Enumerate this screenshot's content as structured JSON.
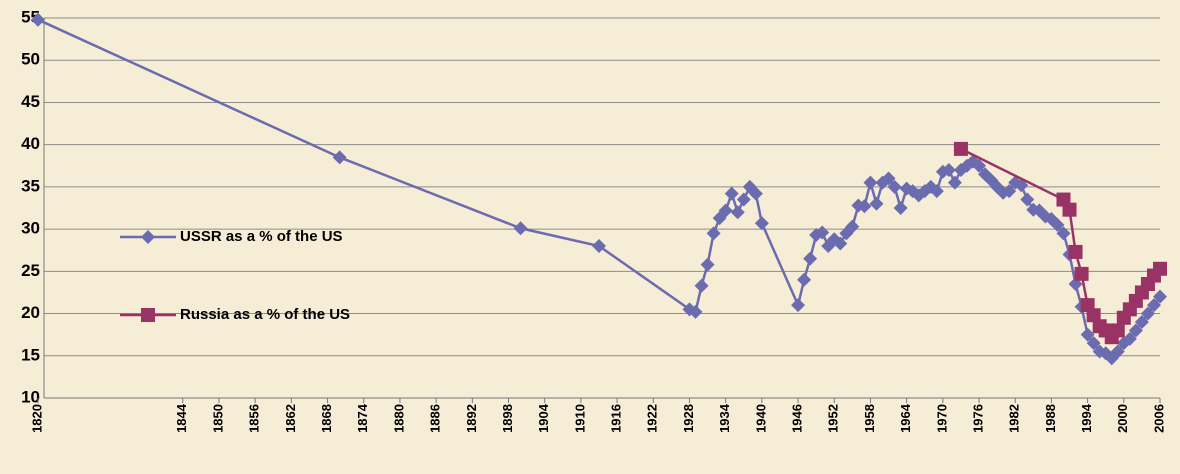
{
  "chart_data": {
    "type": "line",
    "ylim": [
      10,
      55
    ],
    "yticks": [
      10,
      15,
      20,
      25,
      30,
      35,
      40,
      45,
      50,
      55
    ],
    "xlim": [
      1820,
      2006
    ],
    "xticks": [
      1820,
      1844,
      1850,
      1856,
      1862,
      1868,
      1874,
      1880,
      1886,
      1892,
      1898,
      1904,
      1910,
      1916,
      1922,
      1928,
      1934,
      1940,
      1946,
      1952,
      1958,
      1964,
      1970,
      1976,
      1982,
      1988,
      1994,
      2000,
      2006
    ],
    "grid": true,
    "legend": "center-left",
    "series": [
      {
        "name": "USSR as a % of the US",
        "color": "#6b6bb0",
        "marker": "diamond",
        "x": [
          1820,
          1870,
          1900,
          1913,
          1928,
          1929,
          1930,
          1931,
          1932,
          1933,
          1934,
          1935,
          1936,
          1937,
          1938,
          1939,
          1940,
          1946,
          1947,
          1948,
          1949,
          1950,
          1951,
          1952,
          1953,
          1954,
          1955,
          1956,
          1957,
          1958,
          1959,
          1960,
          1961,
          1962,
          1963,
          1964,
          1965,
          1966,
          1967,
          1968,
          1969,
          1970,
          1971,
          1972,
          1973,
          1974,
          1975,
          1976,
          1977,
          1978,
          1979,
          1980,
          1981,
          1982,
          1983,
          1984,
          1985,
          1986,
          1987,
          1988,
          1989,
          1990,
          1991,
          1992,
          1993,
          1994,
          1995,
          1996,
          1997,
          1998,
          1999,
          2000,
          2001,
          2002,
          2003,
          2004,
          2005,
          2006
        ],
        "values": [
          54.8,
          38.5,
          30.1,
          28.0,
          20.5,
          20.2,
          23.3,
          25.8,
          29.5,
          31.3,
          32.2,
          34.2,
          32.0,
          33.5,
          35.0,
          34.2,
          30.7,
          21.0,
          24.0,
          26.5,
          29.3,
          29.6,
          28.0,
          28.8,
          28.3,
          29.5,
          30.3,
          32.8,
          32.7,
          35.5,
          33.0,
          35.5,
          36.0,
          35.0,
          32.5,
          34.8,
          34.5,
          34.0,
          34.5,
          35.0,
          34.5,
          36.8,
          37.0,
          35.5,
          37.0,
          37.5,
          38.0,
          37.5,
          36.5,
          35.8,
          35.0,
          34.3,
          34.5,
          35.5,
          35.2,
          33.5,
          32.3,
          32.2,
          31.5,
          31.2,
          30.5,
          29.5,
          27.0,
          23.5,
          20.8,
          17.5,
          16.5,
          15.5,
          15.3,
          14.7,
          15.5,
          16.5,
          17.0,
          18.0,
          19.0,
          20.0,
          21.0,
          22.0
        ]
      },
      {
        "name": "Russia as a % of the US",
        "color": "#993366",
        "marker": "square",
        "x": [
          1973,
          1990,
          1991,
          1992,
          1993,
          1994,
          1995,
          1996,
          1997,
          1998,
          1999,
          2000,
          2001,
          2002,
          2003,
          2004,
          2005,
          2006
        ],
        "values": [
          39.5,
          33.5,
          32.3,
          27.3,
          24.7,
          21.0,
          19.8,
          18.5,
          18.0,
          17.2,
          18.0,
          19.5,
          20.5,
          21.5,
          22.5,
          23.5,
          24.5,
          25.3
        ]
      }
    ]
  }
}
